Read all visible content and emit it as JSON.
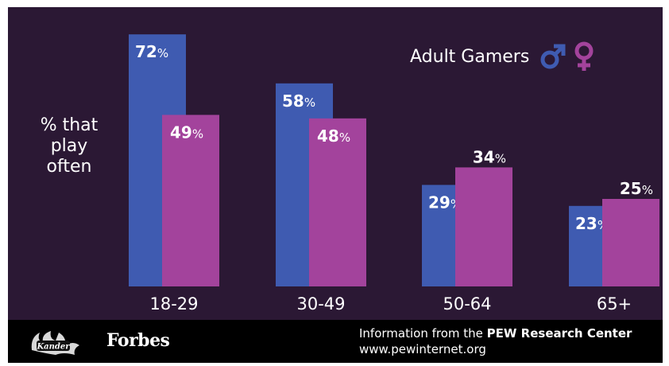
{
  "chart_data": {
    "type": "bar",
    "title": "",
    "ylabel": "% that play often",
    "xlabel": "",
    "categories": [
      "18-29",
      "30-49",
      "50-64",
      "65+"
    ],
    "series": [
      {
        "name": "male",
        "values": [
          72,
          58,
          29,
          23
        ],
        "color": "#3f5bb1"
      },
      {
        "name": "female",
        "values": [
          49,
          48,
          34,
          25
        ],
        "color": "#a3439c"
      }
    ],
    "value_suffix": "%",
    "ylim": [
      0,
      100
    ],
    "grid": false,
    "legend": {
      "label": "Adult Gamers",
      "placement": "top-right",
      "male_icon": "male-symbol-icon",
      "female_icon": "female-symbol-icon"
    }
  },
  "footer": {
    "logo_icon": "kander-dragon-logo",
    "logo_text": "Kander",
    "forbes": "Forbes",
    "source_prefix": "Information from the",
    "source_name": "PEW Research Center",
    "source_url": "www.pewinternet.org"
  },
  "colors": {
    "background": "#2b1834",
    "footer": "#000000",
    "male": "#3f5bb1",
    "female": "#a3439c",
    "text": "#ffffff"
  }
}
